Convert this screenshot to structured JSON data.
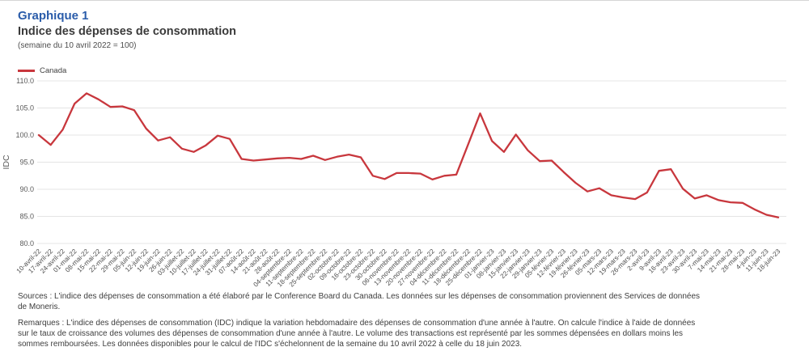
{
  "header": {
    "graph_label": "Graphique 1",
    "title": "Indice des dépenses de consommation",
    "note": "(semaine du 10 avril 2022 = 100)"
  },
  "colors": {
    "title_blue": "#2a5caa",
    "line_red": "#c8373d",
    "grid_gray": "#e4e4e4",
    "axis_text_gray": "#595959",
    "tick_label_gray": "#4d4d4d"
  },
  "chart_data": {
    "type": "line",
    "title": "Indice des dépenses de consommation",
    "subtitle": "(semaine du 10 avril 2022 = 100)",
    "series_name": "Canada",
    "legend_position": "top-left",
    "grid": true,
    "ylabel": "IDC",
    "xlabel": "",
    "ylim": [
      80,
      110
    ],
    "ytick_step": 5,
    "categories": [
      "10-avril-22",
      "17-avril-22",
      "24-avril-22",
      "01-mai-22",
      "08-mai-22",
      "15-mai-22",
      "22-mai-22",
      "29-mai-22",
      "05-juin-22",
      "12-juin-22",
      "19-juin-22",
      "26-juin-22",
      "03-juillet-22",
      "10-juillet-22",
      "17-juillet-22",
      "24-juillet-22",
      "31-juillet-22",
      "07-août-22",
      "14-août-22",
      "21-août-22",
      "28-août-22",
      "04-septembre-22",
      "11-septembre-22",
      "18-septembre-22",
      "25-septembre-22",
      "02-octobre-22",
      "09-octobre-22",
      "16-octobre-22",
      "23-octobre-22",
      "30-octobre-22",
      "06-novembre-22",
      "13-novembre-22",
      "20-novembre-22",
      "27-novembre-22",
      "04-décembre-22",
      "11-décembre-22",
      "18-décembre-22",
      "25-décembre-22",
      "01-janvier-23",
      "08-janvier-23",
      "15-janvier-23",
      "22-janvier-23",
      "29-janvier-23",
      "05-février-23",
      "12-février-23",
      "19-février-23",
      "26-février-23",
      "05-mars-23",
      "12-mars-23",
      "19-mars-23",
      "26-mars-23",
      "2-avril-23",
      "9-avril-23",
      "16-avril-23",
      "23-avril-23",
      "30-avril-23",
      "7-mai-23",
      "14-mai-23",
      "21-mai-23",
      "28-mai-23",
      "4-juin-23",
      "11-juin-23",
      "18-juin-23"
    ],
    "values": [
      100.0,
      98.2,
      101.0,
      105.8,
      107.7,
      106.6,
      105.2,
      105.3,
      104.6,
      101.2,
      99.0,
      99.6,
      97.5,
      96.9,
      98.1,
      99.9,
      99.3,
      95.6,
      95.3,
      95.5,
      95.7,
      95.8,
      95.6,
      96.2,
      95.4,
      96.0,
      96.4,
      95.9,
      92.5,
      91.9,
      93.0,
      93.0,
      92.9,
      91.8,
      92.5,
      92.7,
      98.3,
      104.0,
      98.9,
      96.9,
      100.1,
      97.2,
      95.2,
      95.3,
      93.2,
      91.2,
      89.6,
      90.2,
      88.9,
      88.5,
      88.2,
      89.4,
      93.4,
      93.7,
      90.1,
      88.3,
      88.9,
      88.0,
      87.6,
      87.5,
      86.3,
      85.3,
      84.8
    ]
  },
  "footer": {
    "sources": "Sources : L'indice des dépenses de consommation a été élaboré par le Conference Board du Canada. Les données sur les dépenses de consommation proviennent des Services de données de Moneris.",
    "remarks": "Remarques : L'indice des dépenses de consommation (IDC) indique la variation hebdomadaire des dépenses de consommation d'une année à l'autre. On calcule l'indice à l'aide de données sur le taux de croissance des volumes des dépenses de consommation d'une année à l'autre. Le volume des transactions est représenté par les sommes dépensées en dollars moins les sommes remboursées. Les données disponibles pour le calcul de l'IDC s'échelonnent de la semaine du 10 avril 2022 à celle du 18 juin 2023."
  }
}
